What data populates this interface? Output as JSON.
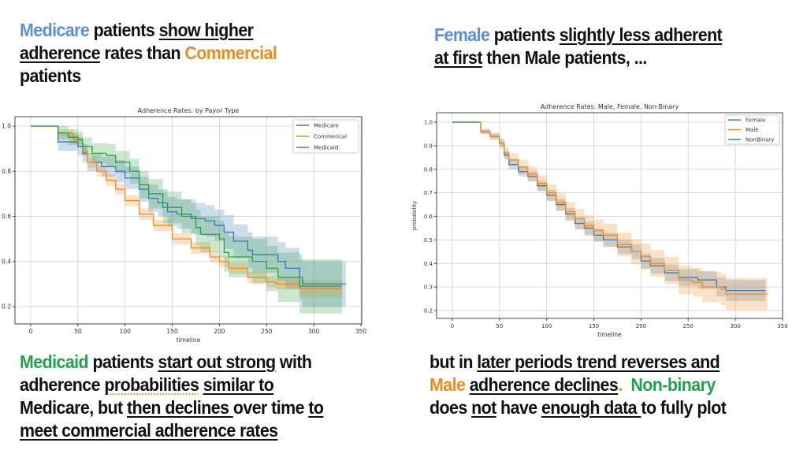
{
  "colors": {
    "blue": "#5b8fd6",
    "orange": "#f08a1c",
    "green": "#1fa34a",
    "text": "#111111"
  },
  "texts": {
    "top_left": [
      [
        {
          "t": "Medicare",
          "c": "blue"
        },
        {
          "t": " patients "
        },
        {
          "t": "show higher",
          "u": true
        }
      ],
      [
        {
          "t": "adherence",
          "u": true
        },
        {
          "t": " rates than "
        },
        {
          "t": "Commercial",
          "c": "orange"
        }
      ],
      [
        {
          "t": "patients"
        }
      ]
    ],
    "top_right": [
      [
        {
          "t": "Female",
          "c": "blue"
        },
        {
          "t": " patients "
        },
        {
          "t": "slightly less adherent",
          "u": true
        }
      ],
      [
        {
          "t": "at first",
          "u": true
        },
        {
          "t": " then Male patients, ..."
        }
      ]
    ],
    "bottom_left": [
      [
        {
          "t": "Medicaid",
          "c": "green"
        },
        {
          "t": " patients "
        },
        {
          "t": "start out strong",
          "u": true
        },
        {
          "t": " with"
        }
      ],
      [
        {
          "t": "adherence "
        },
        {
          "t": "probabilities",
          "d": true
        },
        {
          "t": " "
        },
        {
          "t": "similar to",
          "u": true
        }
      ],
      [
        {
          "t": "Medicare, but "
        },
        {
          "t": "then declines ",
          "u": true
        },
        {
          "t": "over time "
        },
        {
          "t": "to",
          "u": true
        }
      ],
      [
        {
          "t": "meet commercial adherence rates",
          "u": true
        }
      ]
    ],
    "bottom_right": [
      [
        {
          "t": "but in "
        },
        {
          "t": "later periods trend reverses and",
          "u": true
        }
      ],
      [
        {
          "t": "Male",
          "c": "orange"
        },
        {
          "t": " "
        },
        {
          "t": "adherence declines",
          "u": true
        },
        {
          "t": ".",
          "c": "orange"
        },
        {
          "t": "  Non-binary",
          "c": "green"
        }
      ],
      [
        {
          "t": "does "
        },
        {
          "t": "not",
          "u": true
        },
        {
          "t": " have "
        },
        {
          "t": "enough data ",
          "u": true
        },
        {
          "t": "to fully plot"
        }
      ]
    ]
  },
  "chart_data": [
    {
      "type": "line",
      "title": "Adherence Rates: by Payor Type",
      "xlabel": "timeline",
      "ylabel": "",
      "xlim": [
        -17,
        350
      ],
      "ylim": [
        0.13,
        1.04
      ],
      "xticks": [
        0,
        50,
        100,
        150,
        200,
        250,
        300,
        350
      ],
      "yticks": [
        0.2,
        0.4,
        0.6,
        0.8,
        1.0
      ],
      "ytick_labels": [
        "0.2",
        "0.4",
        "0.6",
        "0.8",
        "1.0"
      ],
      "grid": true,
      "legend": "top-right",
      "step": true,
      "series": [
        {
          "name": "Medicare",
          "color": "#3a78b5",
          "x": [
            0,
            28,
            29,
            50,
            55,
            60,
            75,
            90,
            100,
            115,
            125,
            135,
            145,
            155,
            170,
            185,
            195,
            205,
            215,
            230,
            235,
            262,
            270,
            285,
            288,
            334
          ],
          "y": [
            1,
            1,
            0.93,
            0.91,
            0.88,
            0.84,
            0.82,
            0.8,
            0.77,
            0.72,
            0.68,
            0.66,
            0.62,
            0.61,
            0.59,
            0.58,
            0.56,
            0.53,
            0.49,
            0.45,
            0.43,
            0.4,
            0.37,
            0.33,
            0.3,
            0.3
          ],
          "ci_halfwidth": [
            0,
            0,
            0.04,
            0.04,
            0.04,
            0.04,
            0.045,
            0.05,
            0.05,
            0.055,
            0.06,
            0.06,
            0.065,
            0.065,
            0.07,
            0.07,
            0.07,
            0.075,
            0.075,
            0.08,
            0.08,
            0.085,
            0.09,
            0.1,
            0.1,
            0.1
          ]
        },
        {
          "name": "Commerical",
          "color": "#f08a1c",
          "x": [
            0,
            28,
            29,
            45,
            55,
            60,
            70,
            80,
            90,
            100,
            115,
            130,
            150,
            170,
            190,
            200,
            210,
            230,
            250,
            260,
            285,
            330
          ],
          "y": [
            1,
            1,
            0.97,
            0.94,
            0.89,
            0.84,
            0.8,
            0.76,
            0.72,
            0.67,
            0.61,
            0.56,
            0.5,
            0.46,
            0.42,
            0.4,
            0.37,
            0.33,
            0.31,
            0.3,
            0.28,
            0.28
          ],
          "ci_halfwidth": [
            0,
            0,
            0.015,
            0.02,
            0.02,
            0.025,
            0.025,
            0.025,
            0.025,
            0.025,
            0.025,
            0.025,
            0.025,
            0.025,
            0.025,
            0.025,
            0.025,
            0.025,
            0.025,
            0.025,
            0.04,
            0.04
          ]
        },
        {
          "name": "Medicaid",
          "color": "#2e9e3e",
          "x": [
            0,
            28,
            29,
            40,
            50,
            55,
            65,
            80,
            90,
            105,
            115,
            125,
            140,
            160,
            175,
            180,
            200,
            205,
            210,
            230,
            235,
            250,
            262,
            285,
            330
          ],
          "y": [
            1,
            1,
            0.97,
            0.95,
            0.94,
            0.91,
            0.88,
            0.87,
            0.84,
            0.8,
            0.74,
            0.7,
            0.64,
            0.6,
            0.55,
            0.52,
            0.5,
            0.44,
            0.42,
            0.42,
            0.4,
            0.37,
            0.33,
            0.29,
            0.29
          ],
          "ci_halfwidth": [
            0,
            0,
            0.03,
            0.035,
            0.035,
            0.04,
            0.045,
            0.05,
            0.05,
            0.055,
            0.06,
            0.065,
            0.07,
            0.075,
            0.08,
            0.08,
            0.08,
            0.085,
            0.09,
            0.09,
            0.1,
            0.1,
            0.11,
            0.12,
            0.12
          ]
        }
      ]
    },
    {
      "type": "line",
      "title": "Adherence Rates: Male, Female, Non-Binary",
      "xlabel": "timeline",
      "ylabel": "probability",
      "xlim": [
        -17,
        350
      ],
      "ylim": [
        0.165,
        1.04
      ],
      "xticks": [
        0,
        50,
        100,
        150,
        200,
        250,
        300,
        350
      ],
      "yticks": [
        0.2,
        0.3,
        0.4,
        0.5,
        0.6,
        0.7,
        0.8,
        0.9,
        1.0
      ],
      "ytick_labels": [
        "0.2",
        "0.3",
        "0.4",
        "0.5",
        "0.6",
        "0.7",
        "0.8",
        "0.9",
        "1.0"
      ],
      "grid": true,
      "legend": "top-right",
      "step": true,
      "series": [
        {
          "name": "Female",
          "color": "#3a78b5",
          "x": [
            0,
            29,
            30,
            40,
            50,
            55,
            60,
            70,
            80,
            90,
            100,
            110,
            120,
            130,
            140,
            150,
            160,
            175,
            190,
            200,
            210,
            225,
            240,
            260,
            280,
            290,
            332
          ],
          "y": [
            1,
            1,
            0.96,
            0.94,
            0.91,
            0.86,
            0.82,
            0.79,
            0.77,
            0.73,
            0.69,
            0.65,
            0.61,
            0.57,
            0.55,
            0.52,
            0.5,
            0.47,
            0.45,
            0.41,
            0.39,
            0.36,
            0.34,
            0.33,
            0.3,
            0.285,
            0.285
          ],
          "ci_halfwidth": [
            0,
            0,
            0.01,
            0.012,
            0.015,
            0.018,
            0.02,
            0.02,
            0.022,
            0.022,
            0.024,
            0.025,
            0.026,
            0.027,
            0.028,
            0.028,
            0.03,
            0.03,
            0.032,
            0.032,
            0.034,
            0.035,
            0.036,
            0.038,
            0.04,
            0.045,
            0.045
          ]
        },
        {
          "name": "Male",
          "color": "#f08a1c",
          "x": [
            0,
            29,
            30,
            40,
            50,
            55,
            60,
            70,
            80,
            90,
            100,
            110,
            120,
            130,
            140,
            150,
            160,
            175,
            190,
            200,
            210,
            225,
            240,
            255,
            265,
            285,
            290,
            334
          ],
          "y": [
            1,
            1,
            0.96,
            0.94,
            0.91,
            0.87,
            0.84,
            0.81,
            0.78,
            0.74,
            0.7,
            0.66,
            0.62,
            0.59,
            0.56,
            0.54,
            0.52,
            0.48,
            0.45,
            0.43,
            0.4,
            0.37,
            0.33,
            0.32,
            0.3,
            0.29,
            0.27,
            0.27
          ],
          "ci_halfwidth": [
            0,
            0,
            0.012,
            0.015,
            0.02,
            0.025,
            0.028,
            0.03,
            0.032,
            0.034,
            0.036,
            0.038,
            0.04,
            0.042,
            0.044,
            0.046,
            0.048,
            0.05,
            0.052,
            0.054,
            0.056,
            0.058,
            0.06,
            0.062,
            0.064,
            0.066,
            0.068,
            0.068
          ]
        },
        {
          "name": "NonBinary",
          "color": "#2e9e3e",
          "x": [
            0,
            29
          ],
          "y": [
            1,
            1
          ],
          "ci_halfwidth": [
            0,
            0
          ]
        }
      ]
    }
  ]
}
